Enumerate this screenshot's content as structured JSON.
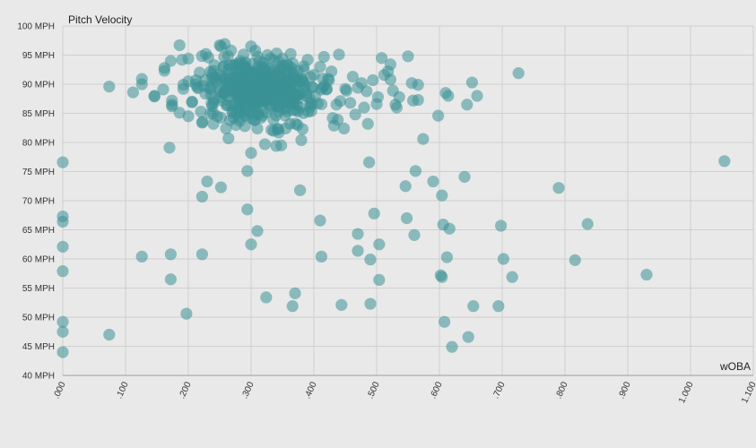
{
  "chart_data": {
    "type": "scatter",
    "title": "",
    "xlabel": "wOBA",
    "ylabel": "Pitch Velocity",
    "xlim": [
      0,
      1.1
    ],
    "ylim": [
      40,
      100
    ],
    "grid": true,
    "legend": "none",
    "colors": {
      "point": "#3a9196",
      "background": "#e9e9e9",
      "grid": "#cfcfcf"
    },
    "x_ticks": [
      {
        "value": 0.0,
        "label": ".000"
      },
      {
        "value": 0.1,
        "label": ".100"
      },
      {
        "value": 0.2,
        "label": ".200"
      },
      {
        "value": 0.3,
        "label": ".300"
      },
      {
        "value": 0.4,
        "label": ".400"
      },
      {
        "value": 0.5,
        "label": ".500"
      },
      {
        "value": 0.6,
        "label": ".600"
      },
      {
        "value": 0.7,
        "label": ".700"
      },
      {
        "value": 0.8,
        "label": ".800"
      },
      {
        "value": 0.9,
        "label": ".900"
      },
      {
        "value": 1.0,
        "label": "1.000"
      },
      {
        "value": 1.1,
        "label": "1.100"
      }
    ],
    "y_ticks": [
      {
        "value": 40,
        "label": "40 MPH"
      },
      {
        "value": 45,
        "label": "45 MPH"
      },
      {
        "value": 50,
        "label": "50 MPH"
      },
      {
        "value": 55,
        "label": "55 MPH"
      },
      {
        "value": 60,
        "label": "60 MPH"
      },
      {
        "value": 65,
        "label": "65 MPH"
      },
      {
        "value": 70,
        "label": "70 MPH"
      },
      {
        "value": 75,
        "label": "75 MPH"
      },
      {
        "value": 80,
        "label": "80 MPH"
      },
      {
        "value": 85,
        "label": "85 MPH"
      },
      {
        "value": 90,
        "label": "90 MPH"
      },
      {
        "value": 95,
        "label": "95 MPH"
      },
      {
        "value": 100,
        "label": "100 MPH"
      }
    ],
    "points": [
      [
        0.0,
        76.6
      ],
      [
        0.0,
        67.3
      ],
      [
        0.0,
        66.4
      ],
      [
        0.0,
        62.1
      ],
      [
        0.0,
        57.9
      ],
      [
        0.0,
        49.2
      ],
      [
        0.0,
        47.5
      ],
      [
        0.0,
        44.0
      ],
      [
        0.074,
        89.6
      ],
      [
        0.074,
        47.0
      ],
      [
        0.112,
        88.6
      ],
      [
        0.126,
        90.9
      ],
      [
        0.126,
        90.0
      ],
      [
        0.126,
        60.4
      ],
      [
        0.146,
        88.0
      ],
      [
        0.146,
        87.9
      ],
      [
        0.16,
        89.1
      ],
      [
        0.162,
        92.3
      ],
      [
        0.162,
        92.8
      ],
      [
        0.172,
        94.0
      ],
      [
        0.174,
        87.2
      ],
      [
        0.174,
        86.5
      ],
      [
        0.174,
        86.2
      ],
      [
        0.172,
        60.8
      ],
      [
        0.172,
        56.5
      ],
      [
        0.17,
        79.1
      ],
      [
        0.186,
        96.7
      ],
      [
        0.186,
        85.1
      ],
      [
        0.192,
        89.9
      ],
      [
        0.192,
        89.2
      ],
      [
        0.19,
        94.2
      ],
      [
        0.197,
        50.6
      ],
      [
        0.2,
        94.4
      ],
      [
        0.2,
        90.5
      ],
      [
        0.2,
        84.5
      ],
      [
        0.206,
        87.0
      ],
      [
        0.206,
        86.9
      ],
      [
        0.212,
        90.0
      ],
      [
        0.214,
        89.5
      ],
      [
        0.218,
        92.0
      ],
      [
        0.22,
        85.3
      ],
      [
        0.222,
        83.4
      ],
      [
        0.222,
        70.7
      ],
      [
        0.222,
        60.8
      ],
      [
        0.228,
        95.2
      ],
      [
        0.232,
        94.6
      ],
      [
        0.23,
        73.3
      ],
      [
        0.236,
        88.2
      ],
      [
        0.238,
        91.1
      ],
      [
        0.24,
        83.2
      ],
      [
        0.246,
        84.5
      ],
      [
        0.25,
        96.7
      ],
      [
        0.252,
        96.5
      ],
      [
        0.252,
        72.3
      ],
      [
        0.256,
        93.0
      ],
      [
        0.258,
        96.9
      ],
      [
        0.26,
        82.4
      ],
      [
        0.264,
        80.7
      ],
      [
        0.268,
        95.8
      ],
      [
        0.27,
        85.2
      ],
      [
        0.272,
        84.2
      ],
      [
        0.272,
        93.3
      ],
      [
        0.276,
        83.0
      ],
      [
        0.28,
        85.8
      ],
      [
        0.282,
        83.7
      ],
      [
        0.288,
        95.1
      ],
      [
        0.29,
        82.8
      ],
      [
        0.29,
        90.6
      ],
      [
        0.294,
        75.1
      ],
      [
        0.294,
        68.5
      ],
      [
        0.3,
        96.5
      ],
      [
        0.3,
        78.2
      ],
      [
        0.3,
        62.5
      ],
      [
        0.302,
        89.4
      ],
      [
        0.31,
        64.8
      ],
      [
        0.31,
        82.4
      ],
      [
        0.314,
        91.2
      ],
      [
        0.318,
        84.6
      ],
      [
        0.322,
        79.7
      ],
      [
        0.324,
        53.4
      ],
      [
        0.326,
        95.0
      ],
      [
        0.33,
        92.3
      ],
      [
        0.336,
        82.0
      ],
      [
        0.34,
        79.4
      ],
      [
        0.344,
        81.7
      ],
      [
        0.348,
        79.5
      ],
      [
        0.35,
        94.4
      ],
      [
        0.352,
        90.9
      ],
      [
        0.356,
        86.0
      ],
      [
        0.362,
        83.2
      ],
      [
        0.366,
        51.9
      ],
      [
        0.37,
        88.3
      ],
      [
        0.37,
        54.1
      ],
      [
        0.374,
        83.0
      ],
      [
        0.378,
        71.8
      ],
      [
        0.38,
        80.4
      ],
      [
        0.382,
        82.3
      ],
      [
        0.384,
        93.1
      ],
      [
        0.388,
        88.0
      ],
      [
        0.39,
        94.2
      ],
      [
        0.396,
        85.4
      ],
      [
        0.4,
        91.6
      ],
      [
        0.402,
        87.9
      ],
      [
        0.406,
        86.7
      ],
      [
        0.41,
        93.0
      ],
      [
        0.41,
        66.6
      ],
      [
        0.412,
        60.4
      ],
      [
        0.416,
        94.7
      ],
      [
        0.42,
        89.1
      ],
      [
        0.424,
        90.7
      ],
      [
        0.428,
        92.2
      ],
      [
        0.43,
        84.2
      ],
      [
        0.432,
        82.9
      ],
      [
        0.436,
        86.5
      ],
      [
        0.438,
        83.9
      ],
      [
        0.44,
        95.1
      ],
      [
        0.442,
        87.1
      ],
      [
        0.444,
        52.1
      ],
      [
        0.448,
        82.4
      ],
      [
        0.45,
        89.2
      ],
      [
        0.452,
        88.9
      ],
      [
        0.458,
        86.8
      ],
      [
        0.462,
        91.3
      ],
      [
        0.466,
        84.8
      ],
      [
        0.47,
        89.4
      ],
      [
        0.47,
        64.3
      ],
      [
        0.47,
        61.4
      ],
      [
        0.476,
        90.2
      ],
      [
        0.48,
        86.0
      ],
      [
        0.484,
        88.8
      ],
      [
        0.486,
        83.2
      ],
      [
        0.488,
        76.6
      ],
      [
        0.49,
        59.9
      ],
      [
        0.49,
        52.3
      ],
      [
        0.494,
        90.7
      ],
      [
        0.496,
        67.8
      ],
      [
        0.5,
        86.6
      ],
      [
        0.502,
        87.8
      ],
      [
        0.504,
        62.5
      ],
      [
        0.504,
        56.4
      ],
      [
        0.508,
        94.5
      ],
      [
        0.512,
        91.6
      ],
      [
        0.518,
        92.2
      ],
      [
        0.522,
        93.4
      ],
      [
        0.522,
        90.8
      ],
      [
        0.526,
        88.9
      ],
      [
        0.53,
        86.5
      ],
      [
        0.532,
        86.0
      ],
      [
        0.536,
        87.8
      ],
      [
        0.546,
        72.5
      ],
      [
        0.548,
        67.0
      ],
      [
        0.55,
        94.8
      ],
      [
        0.556,
        90.2
      ],
      [
        0.558,
        87.2
      ],
      [
        0.56,
        64.1
      ],
      [
        0.562,
        75.1
      ],
      [
        0.566,
        89.9
      ],
      [
        0.566,
        87.3
      ],
      [
        0.574,
        80.6
      ],
      [
        0.59,
        73.3
      ],
      [
        0.598,
        84.6
      ],
      [
        0.602,
        57.2
      ],
      [
        0.604,
        56.9
      ],
      [
        0.604,
        70.9
      ],
      [
        0.606,
        65.9
      ],
      [
        0.608,
        49.2
      ],
      [
        0.61,
        88.5
      ],
      [
        0.612,
        60.3
      ],
      [
        0.614,
        88.0
      ],
      [
        0.616,
        65.2
      ],
      [
        0.62,
        44.9
      ],
      [
        0.64,
        74.1
      ],
      [
        0.644,
        86.5
      ],
      [
        0.646,
        46.6
      ],
      [
        0.652,
        90.3
      ],
      [
        0.654,
        51.9
      ],
      [
        0.66,
        88.0
      ],
      [
        0.694,
        51.9
      ],
      [
        0.698,
        65.7
      ],
      [
        0.702,
        60.0
      ],
      [
        0.716,
        56.9
      ],
      [
        0.726,
        91.9
      ],
      [
        0.79,
        72.2
      ],
      [
        0.816,
        59.8
      ],
      [
        0.836,
        66.0
      ],
      [
        0.93,
        57.3
      ],
      [
        1.054,
        76.8
      ]
    ],
    "cluster_note_values": []
  }
}
